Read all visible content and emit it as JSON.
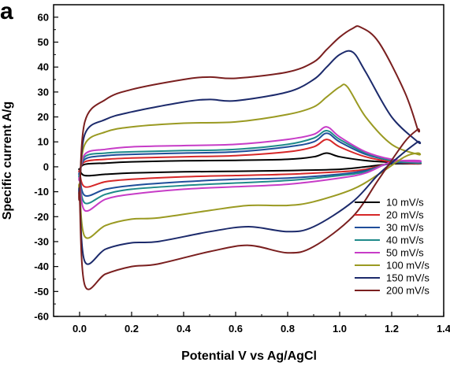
{
  "chart_data": {
    "type": "line",
    "panel_label": "a",
    "xlabel": "Potential V vs Ag/AgCl",
    "ylabel": "Specific current A/g",
    "xlim": [
      -0.1,
      1.4
    ],
    "ylim": [
      -60,
      65
    ],
    "xticks": [
      0.0,
      0.2,
      0.4,
      0.6,
      0.8,
      1.0,
      1.2,
      1.4
    ],
    "xtick_labels": [
      "0.0",
      "0.2",
      "0.4",
      "0.6",
      "0.8",
      "1.0",
      "1.2",
      "1.4"
    ],
    "yticks": [
      -60,
      -50,
      -40,
      -30,
      -20,
      -10,
      0,
      10,
      20,
      30,
      40,
      50,
      60
    ],
    "ytick_labels": [
      "-60",
      "-50",
      "-40",
      "-30",
      "-20",
      "-10",
      "0",
      "10",
      "20",
      "30",
      "40",
      "50",
      "60"
    ],
    "grid": false,
    "legend_position": "bottom-right",
    "series": [
      {
        "name": "10 mV/s",
        "color": "#000000",
        "x": [
          0,
          0.02,
          0.1,
          0.2,
          0.4,
          0.6,
          0.8,
          0.9,
          0.95,
          1.0,
          1.1,
          1.2,
          1.3,
          1.3,
          1.2,
          1.1,
          1.0,
          0.8,
          0.6,
          0.4,
          0.2,
          0.1,
          0.02,
          0
        ],
        "y": [
          -1,
          1,
          1.5,
          2,
          2.4,
          2.6,
          3,
          4,
          5.5,
          4,
          2.5,
          1.8,
          1.4,
          1.2,
          1.2,
          0,
          -1,
          -1.5,
          -1.8,
          -2,
          -2.5,
          -3,
          -3.5,
          -1
        ]
      },
      {
        "name": "20 mV/s",
        "color": "#d62728",
        "x": [
          0,
          0.02,
          0.1,
          0.2,
          0.4,
          0.6,
          0.8,
          0.9,
          0.95,
          1.0,
          1.1,
          1.2,
          1.3,
          1.3,
          1.2,
          1.1,
          1.0,
          0.8,
          0.6,
          0.4,
          0.2,
          0.1,
          0.02,
          0
        ],
        "y": [
          -2,
          2,
          3,
          3.5,
          4,
          4.5,
          6,
          8,
          11,
          8,
          4,
          2,
          1.2,
          1.5,
          1.5,
          -1,
          -2,
          -3,
          -3.5,
          -4,
          -5,
          -6,
          -8,
          -2
        ]
      },
      {
        "name": "30 mV/s",
        "color": "#1f4e9a",
        "x": [
          0,
          0.02,
          0.1,
          0.2,
          0.4,
          0.6,
          0.8,
          0.9,
          0.95,
          1.0,
          1.1,
          1.2,
          1.3,
          1.3,
          1.2,
          1.1,
          1.0,
          0.8,
          0.6,
          0.4,
          0.2,
          0.1,
          0.02,
          0
        ],
        "y": [
          -3,
          3,
          4.5,
          5,
          5.5,
          6,
          8,
          10,
          13.5,
          10,
          5,
          2.5,
          1.5,
          1.5,
          1.5,
          -1.5,
          -3,
          -4.5,
          -5,
          -6,
          -7.5,
          -9,
          -11.5,
          -3
        ]
      },
      {
        "name": "40 mV/s",
        "color": "#1f8a8a",
        "x": [
          0,
          0.02,
          0.1,
          0.2,
          0.4,
          0.6,
          0.8,
          0.9,
          0.95,
          1.0,
          1.1,
          1.2,
          1.3,
          1.3,
          1.2,
          1.1,
          1.0,
          0.8,
          0.6,
          0.4,
          0.2,
          0.1,
          0.02,
          0
        ],
        "y": [
          -4,
          4,
          5.5,
          6,
          6.5,
          7,
          9,
          11.5,
          14.5,
          11,
          5.5,
          2.5,
          1.5,
          1.8,
          1.8,
          -2,
          -3.5,
          -5.5,
          -6.5,
          -7.5,
          -9,
          -11,
          -14.5,
          -4
        ]
      },
      {
        "name": "50 mV/s",
        "color": "#c73cc7",
        "x": [
          0,
          0.02,
          0.1,
          0.2,
          0.4,
          0.6,
          0.8,
          0.9,
          0.95,
          1.0,
          1.1,
          1.2,
          1.3,
          1.3,
          1.2,
          1.1,
          1.0,
          0.8,
          0.6,
          0.4,
          0.2,
          0.1,
          0.02,
          0
        ],
        "y": [
          -5,
          5,
          7,
          8,
          8.5,
          9,
          11,
          13,
          16,
          12,
          6,
          3,
          2,
          2.5,
          2,
          -2.5,
          -4.5,
          -7,
          -8,
          -9,
          -11,
          -13,
          -17.5,
          -5
        ]
      },
      {
        "name": "100 mV/s",
        "color": "#9a9a22",
        "x": [
          0,
          0.02,
          0.1,
          0.2,
          0.4,
          0.6,
          0.8,
          0.9,
          0.95,
          1.0,
          1.03,
          1.1,
          1.2,
          1.3,
          1.3,
          1.25,
          1.15,
          1.05,
          0.9,
          0.8,
          0.65,
          0.5,
          0.3,
          0.2,
          0.1,
          0.02,
          0
        ],
        "y": [
          -8,
          9,
          14,
          16,
          17.5,
          18,
          21,
          24,
          28,
          32,
          32,
          20,
          9,
          5,
          5.5,
          4,
          -3,
          -9,
          -14,
          -15.5,
          -15.5,
          -17.5,
          -20.5,
          -21,
          -23.5,
          -28,
          -8
        ]
      },
      {
        "name": "150 mV/s",
        "color": "#1c2a6b",
        "x": [
          0,
          0.02,
          0.1,
          0.2,
          0.4,
          0.5,
          0.6,
          0.8,
          0.9,
          0.95,
          1.0,
          1.05,
          1.1,
          1.2,
          1.3,
          1.3,
          1.25,
          1.15,
          1.05,
          0.9,
          0.8,
          0.65,
          0.5,
          0.3,
          0.2,
          0.1,
          0.02,
          0
        ],
        "y": [
          -10,
          13,
          19,
          22,
          26,
          27,
          26.5,
          30,
          35,
          40,
          45,
          46,
          38,
          20,
          10,
          10,
          6,
          -3,
          -14,
          -24,
          -26,
          -24,
          -26,
          -30,
          -30.5,
          -33,
          -38,
          -10
        ]
      },
      {
        "name": "200 mV/s",
        "color": "#7a1f1f",
        "x": [
          0,
          0.02,
          0.1,
          0.2,
          0.4,
          0.5,
          0.6,
          0.8,
          0.9,
          0.95,
          1.0,
          1.05,
          1.08,
          1.15,
          1.25,
          1.3,
          1.3,
          1.25,
          1.15,
          1.05,
          0.9,
          0.8,
          0.65,
          0.5,
          0.3,
          0.2,
          0.1,
          0.02,
          0
        ],
        "y": [
          -12,
          18,
          27,
          31,
          35,
          36,
          35.5,
          38,
          42,
          47,
          52,
          55.5,
          56,
          50,
          30,
          15,
          15,
          10,
          -5,
          -20,
          -32,
          -34.5,
          -31.5,
          -34,
          -39,
          -40,
          -43,
          -47.5,
          -12
        ]
      }
    ]
  }
}
